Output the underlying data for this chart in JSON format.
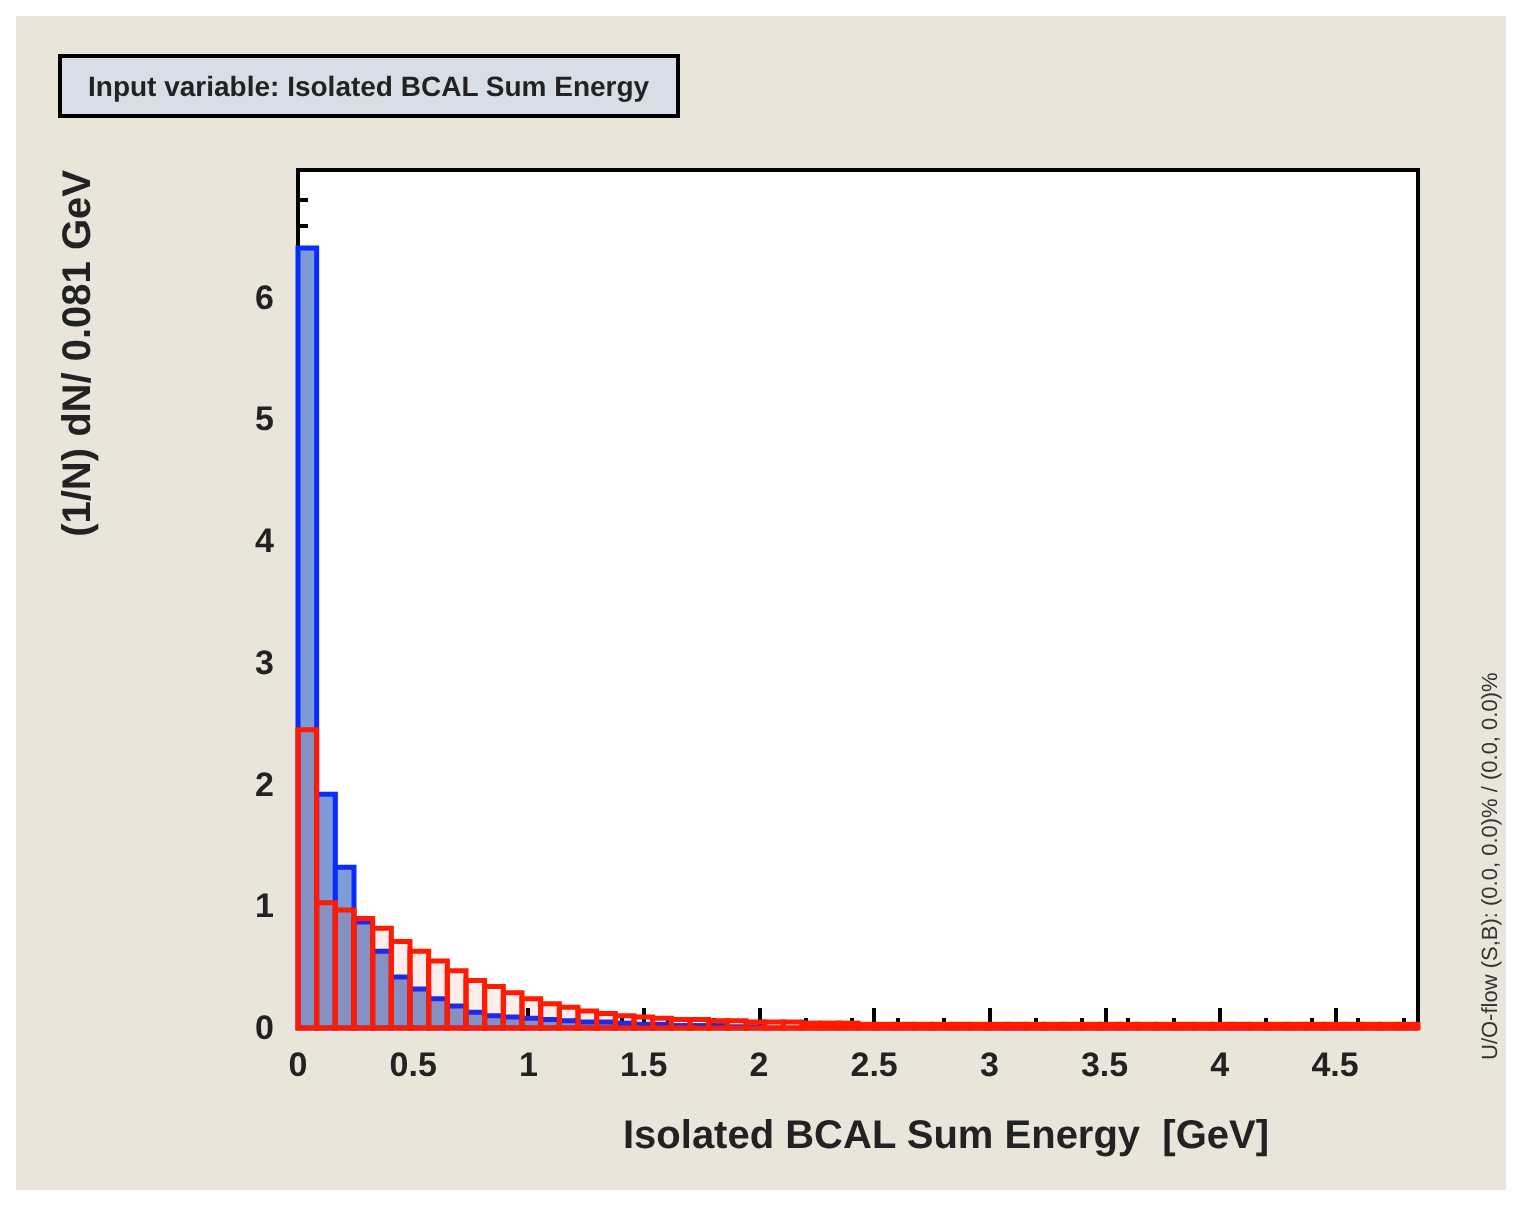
{
  "chart_data": {
    "type": "histogram",
    "title": "Input variable: Isolated BCAL Sum Energy",
    "xlabel": "Isolated BCAL Sum Energy  [GeV]",
    "ylabel": "(1/N) dN/ 0.081 GeV",
    "annotations": [
      "U/O-flow (S,B): (0.0, 0.0)% / (0.0, 0.0)%"
    ],
    "bins": [
      0,
      0.081,
      0.162,
      0.243,
      0.324,
      0.405,
      0.486,
      0.567,
      0.648,
      0.729,
      0.81,
      0.891,
      0.972,
      1.053,
      1.134,
      1.215,
      1.296,
      1.377,
      1.458,
      1.539,
      1.62,
      1.701,
      1.782,
      1.863,
      1.944,
      2.025,
      2.106,
      2.187,
      2.268,
      2.349,
      2.43,
      2.511,
      2.592,
      2.673,
      2.754,
      2.835,
      2.916,
      2.997,
      3.078,
      3.159,
      3.24,
      3.321,
      3.402,
      3.483,
      3.564,
      3.645,
      3.726,
      3.807,
      3.888,
      3.969,
      4.05,
      4.131,
      4.212,
      4.293,
      4.374,
      4.455,
      4.536,
      4.617,
      4.698,
      4.779,
      4.86
    ],
    "series": [
      {
        "color": "#0a2bff",
        "values": [
          6.41,
          1.92,
          1.32,
          0.87,
          0.63,
          0.42,
          0.32,
          0.24,
          0.18,
          0.13,
          0.1,
          0.09,
          0.08,
          0.07,
          0.06,
          0.05,
          0.05,
          0.04,
          0.03,
          0.03,
          0.02,
          0.02,
          0.02,
          0.01,
          0.01,
          0,
          0,
          0,
          0,
          0,
          0,
          0,
          0,
          0,
          0,
          0,
          0,
          0,
          0,
          0,
          0,
          0,
          0,
          0,
          0,
          0,
          0,
          0,
          0,
          0,
          0,
          0,
          0,
          0,
          0,
          0,
          0,
          0,
          0,
          0
        ]
      },
      {
        "color": "#ff1a00",
        "values": [
          2.45,
          1.03,
          0.97,
          0.9,
          0.82,
          0.71,
          0.63,
          0.55,
          0.47,
          0.39,
          0.34,
          0.29,
          0.24,
          0.2,
          0.17,
          0.14,
          0.12,
          0.1,
          0.09,
          0.08,
          0.07,
          0.07,
          0.06,
          0.06,
          0.05,
          0.05,
          0.05,
          0.04,
          0.04,
          0.04,
          0.03,
          0.03,
          0.03,
          0.03,
          0.03,
          0.03,
          0.03,
          0.03,
          0.03,
          0.03,
          0.03,
          0.03,
          0.03,
          0.03,
          0.03,
          0.03,
          0.03,
          0.03,
          0.03,
          0.03,
          0.03,
          0.03,
          0.03,
          0.03,
          0.03,
          0.03,
          0.03,
          0.03,
          0.03,
          0.03
        ]
      }
    ],
    "xlim": [
      0,
      4.86
    ],
    "ylim": [
      0,
      7.05
    ],
    "xticks": [
      0,
      0.5,
      1,
      1.5,
      2,
      2.5,
      3,
      3.5,
      4,
      4.5
    ],
    "yticks": [
      0,
      1,
      2,
      3,
      4,
      5,
      6
    ]
  }
}
